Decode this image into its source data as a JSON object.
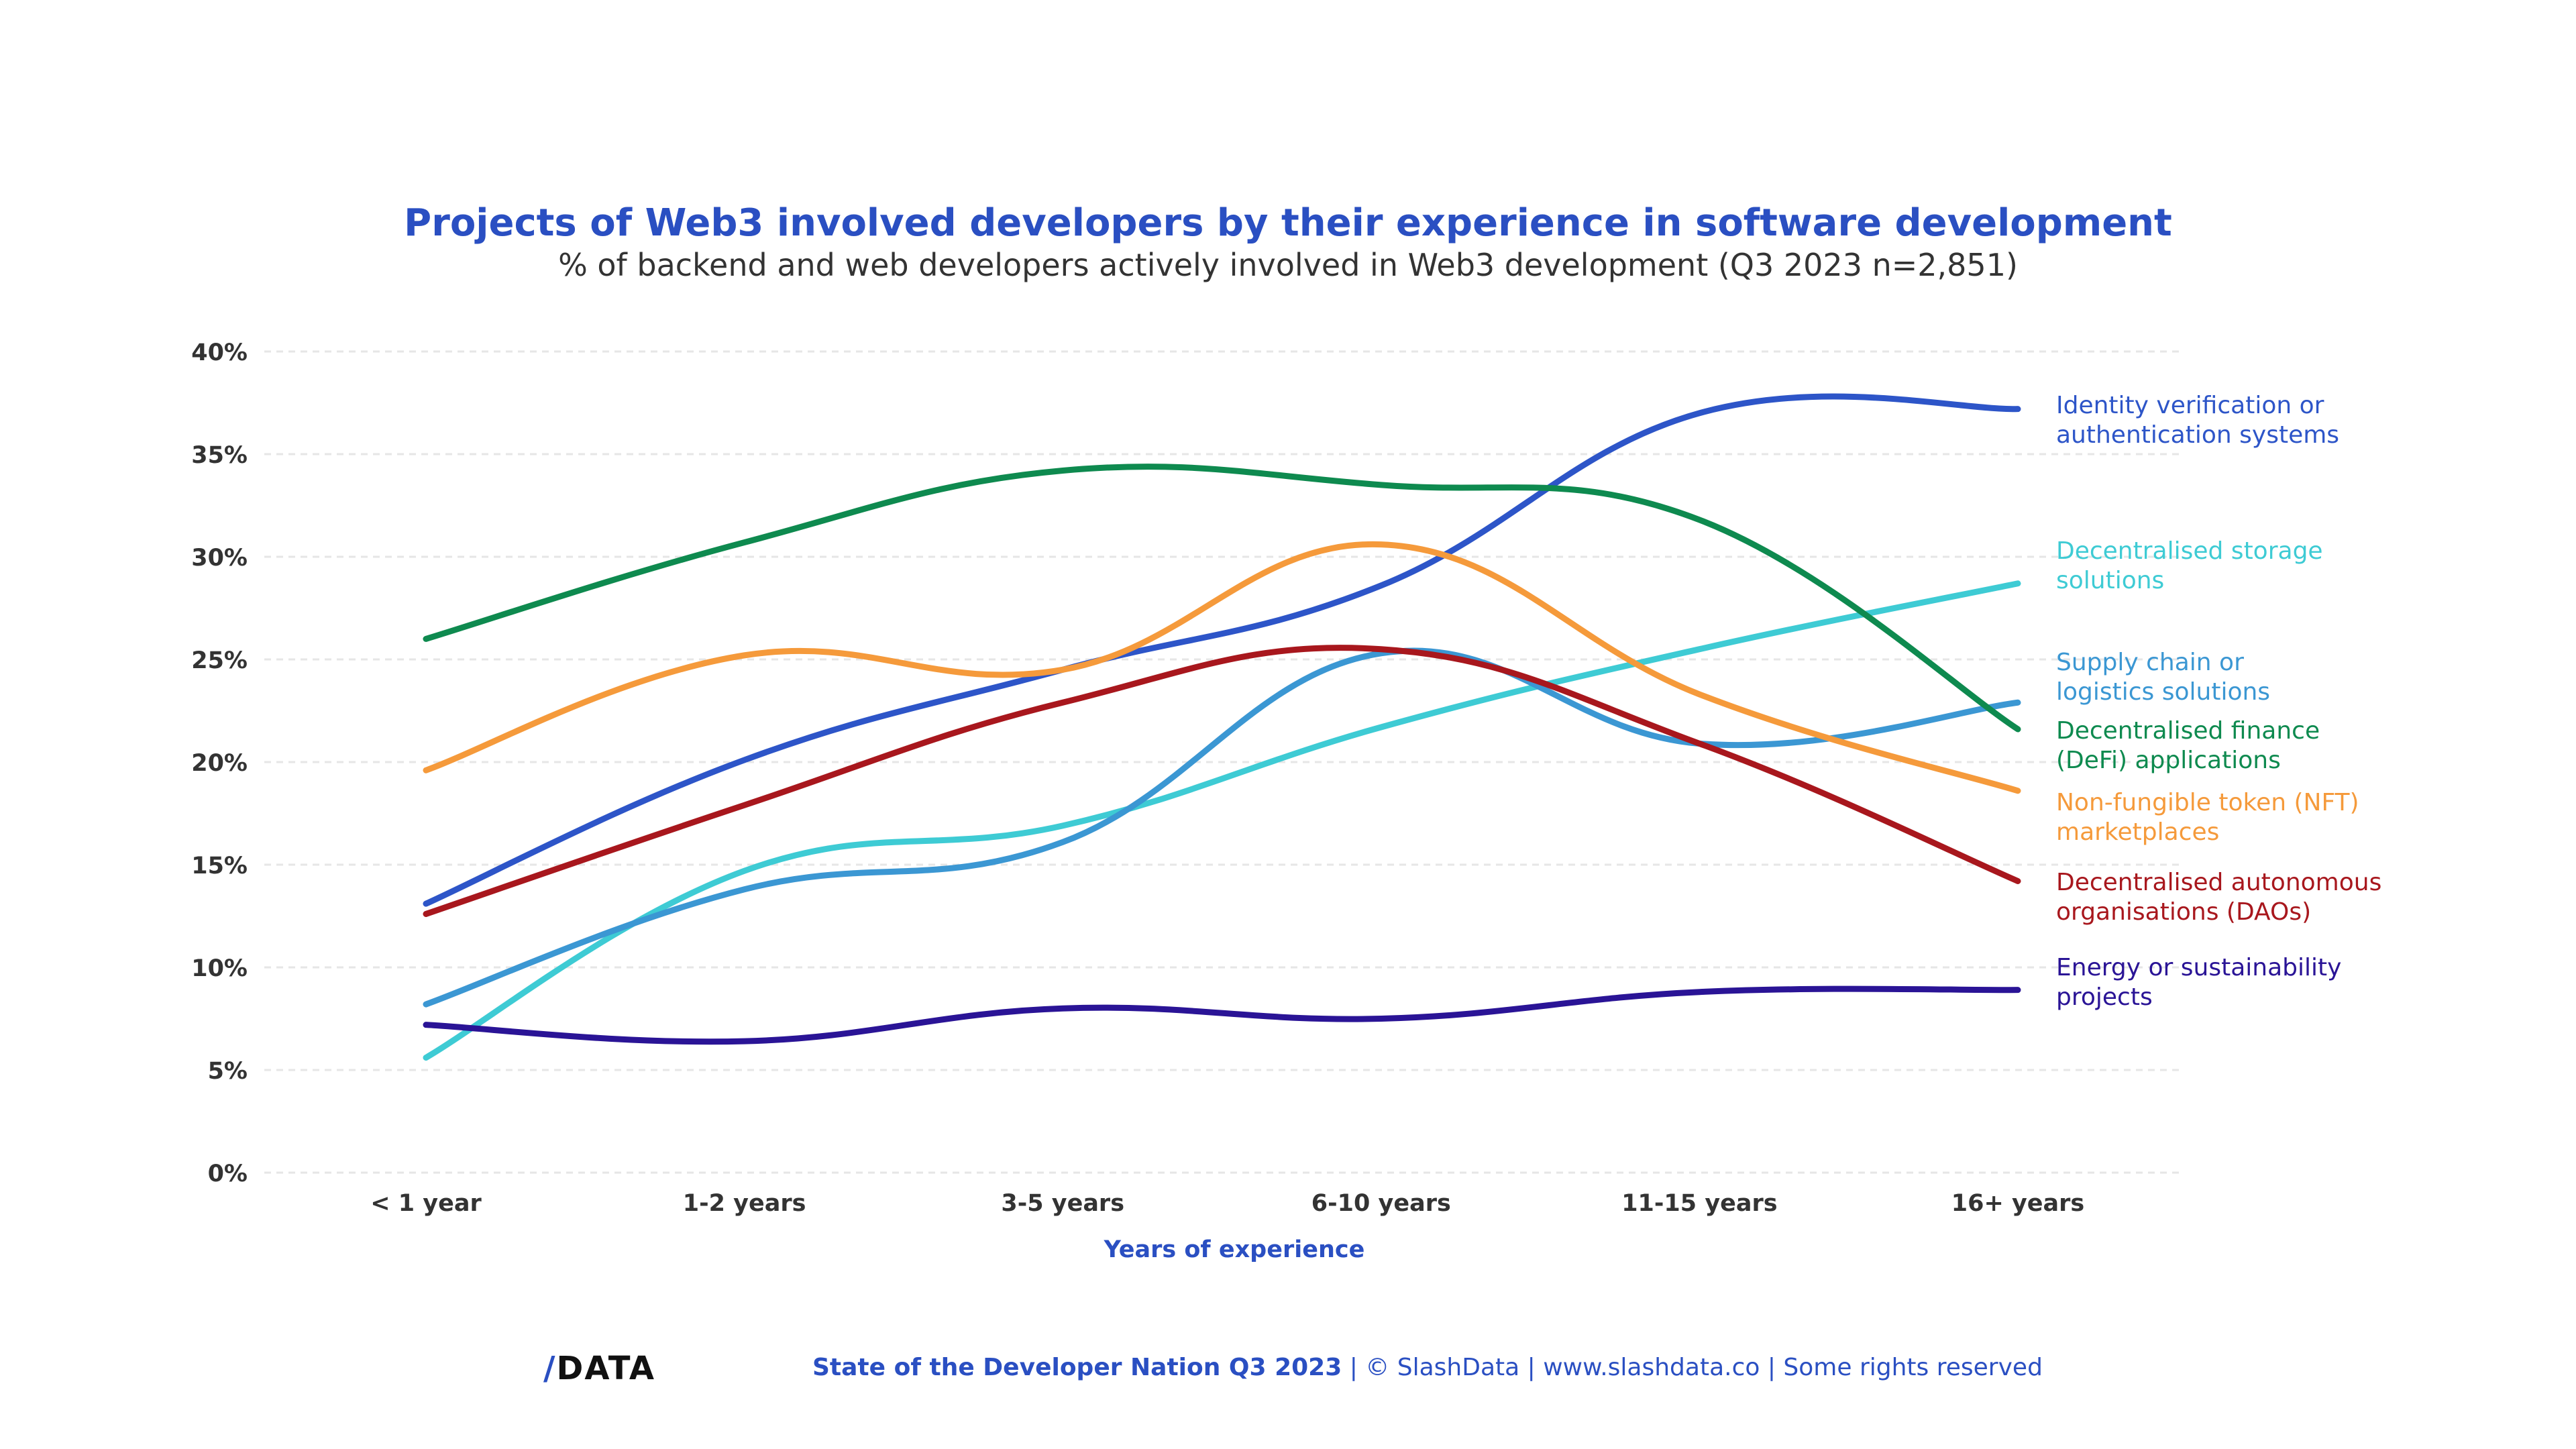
{
  "chart_data": {
    "type": "line",
    "title": "Projects of Web3 involved developers by their experience in software development",
    "subtitle": "% of backend and web developers actively involved in Web3 development (Q3 2023 n=2,851)",
    "xlabel": "Years of experience",
    "ylabel": "",
    "categories": [
      "< 1 year",
      "1-2 years",
      "3-5 years",
      "6-10 years",
      "11-15 years",
      "16+ years"
    ],
    "ylim": [
      0,
      40
    ],
    "yticks": [
      "0%",
      "5%",
      "10%",
      "15%",
      "20%",
      "25%",
      "30%",
      "35%",
      "40%"
    ],
    "grid": true,
    "legend_placement": "right (end-of-line labels)",
    "series": [
      {
        "name": "Identity verification or authentication systems",
        "label_lines": [
          "Identity verification or",
          "authentication systems"
        ],
        "color": "#2d55c8",
        "values": [
          13.1,
          20.1,
          24.5,
          28.6,
          37.0,
          37.2
        ]
      },
      {
        "name": "Decentralised storage solutions",
        "label_lines": [
          "Decentralised storage",
          "solutions"
        ],
        "color": "#3ecbd4",
        "values": [
          5.6,
          14.7,
          16.9,
          21.7,
          25.5,
          28.7
        ]
      },
      {
        "name": "Supply chain or logistics solutions",
        "label_lines": [
          "Supply chain or",
          "logistics solutions"
        ],
        "color": "#3b97d3",
        "values": [
          8.2,
          13.8,
          16.1,
          25.3,
          20.9,
          22.9
        ]
      },
      {
        "name": "Decentralised finance (DeFi) applications",
        "label_lines": [
          "Decentralised finance",
          "(DeFi) applications"
        ],
        "color": "#0e8a4f",
        "values": [
          26.0,
          30.7,
          34.2,
          33.5,
          31.8,
          21.6
        ]
      },
      {
        "name": "Non-fungible token (NFT) marketplaces",
        "label_lines": [
          "Non-fungible token (NFT)",
          "marketplaces"
        ],
        "color": "#f59a3b",
        "values": [
          19.6,
          25.2,
          24.5,
          30.6,
          23.3,
          18.6
        ]
      },
      {
        "name": "Decentralised autonomous organisations (DAOs)",
        "label_lines": [
          "Decentralised autonomous",
          "organisations (DAOs)"
        ],
        "color": "#a8171d",
        "values": [
          12.6,
          17.9,
          22.9,
          25.5,
          20.9,
          14.2
        ]
      },
      {
        "name": "Energy or sustainability projects",
        "label_lines": [
          "Energy or sustainability",
          "projects"
        ],
        "color": "#2a1496",
        "values": [
          7.2,
          6.4,
          8.0,
          7.5,
          8.8,
          8.9
        ]
      }
    ]
  },
  "footer": {
    "logo": "/DATA",
    "source_bold": "State of the Developer Nation Q3 2023",
    "rest": " | © SlashData | www.slashdata.co | Some rights reserved"
  },
  "colors": {
    "accent": "#2a4fc2",
    "text": "#333333",
    "grid": "#e6e6e6"
  }
}
